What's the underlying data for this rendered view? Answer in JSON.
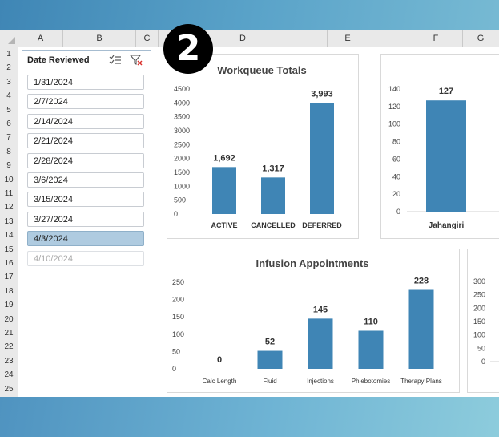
{
  "sheet": {
    "columns": [
      "A",
      "B",
      "C",
      "D",
      "E",
      "F",
      "G"
    ],
    "rows": [
      "1",
      "2",
      "3",
      "4",
      "5",
      "6",
      "7",
      "8",
      "9",
      "10",
      "11",
      "12",
      "13",
      "14",
      "15",
      "16",
      "17",
      "18",
      "19",
      "20",
      "21",
      "22",
      "23",
      "24",
      "25"
    ]
  },
  "slicer": {
    "title": "Date Reviewed",
    "multiselect_icon": "multi-select-icon",
    "clear_filter_icon": "clear-filter-icon",
    "items": [
      {
        "label": "1/31/2024",
        "state": "normal"
      },
      {
        "label": "2/7/2024",
        "state": "normal"
      },
      {
        "label": "2/14/2024",
        "state": "normal"
      },
      {
        "label": "2/21/2024",
        "state": "normal"
      },
      {
        "label": "2/28/2024",
        "state": "normal"
      },
      {
        "label": "3/6/2024",
        "state": "normal"
      },
      {
        "label": "3/15/2024",
        "state": "normal"
      },
      {
        "label": "3/27/2024",
        "state": "normal"
      },
      {
        "label": "4/3/2024",
        "state": "selected"
      },
      {
        "label": "4/10/2024",
        "state": "dimmed"
      }
    ]
  },
  "badge": {
    "text": "2"
  },
  "colors": {
    "bar": "#3f85b5",
    "selected": "#afcbe0",
    "background": "#5aa3c9"
  },
  "chart_data": [
    {
      "type": "bar",
      "title": "Workqueue Totals",
      "categories": [
        "ACTIVE",
        "CANCELLED",
        "DEFERRED"
      ],
      "values": [
        1692,
        1317,
        3993
      ],
      "value_labels": [
        "1,692",
        "1,317",
        "3,993"
      ],
      "ylim": [
        0,
        4500
      ],
      "yticks": [
        0,
        500,
        1000,
        1500,
        2000,
        2500,
        3000,
        3500,
        4000,
        4500
      ],
      "grid": false
    },
    {
      "type": "bar",
      "title": "",
      "categories": [
        "Jahangiri"
      ],
      "values": [
        127
      ],
      "value_labels": [
        "127"
      ],
      "ylim": [
        0,
        140
      ],
      "yticks": [
        0,
        20,
        40,
        60,
        80,
        100,
        120,
        140
      ],
      "grid": false
    },
    {
      "type": "bar",
      "title": "Infusion Appointments",
      "categories": [
        "Calc Length",
        "Fluid",
        "Injections",
        "Phlebotomies",
        "Therapy Plans"
      ],
      "values": [
        0,
        52,
        145,
        110,
        228
      ],
      "value_labels": [
        "0",
        "52",
        "145",
        "110",
        "228"
      ],
      "ylim": [
        0,
        250
      ],
      "yticks": [
        0,
        50,
        100,
        150,
        200,
        250
      ],
      "grid": false
    },
    {
      "type": "bar",
      "title": "",
      "categories": [],
      "values": [],
      "ylim": [
        0,
        300
      ],
      "yticks": [
        0,
        50,
        100,
        150,
        200,
        250,
        300
      ],
      "grid": false
    }
  ]
}
